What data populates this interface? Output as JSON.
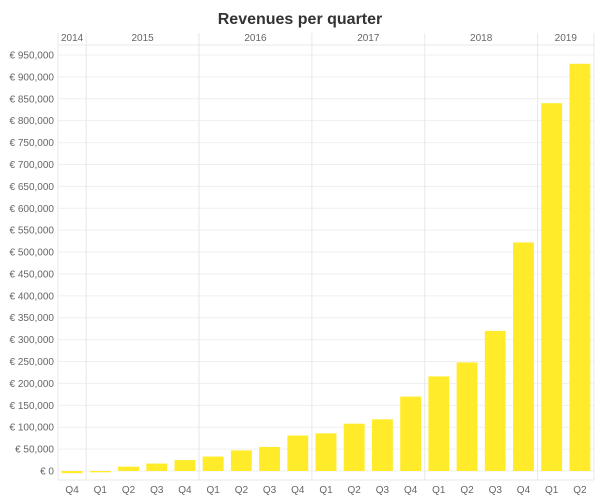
{
  "chart_data": {
    "type": "bar",
    "title": "Revenues per quarter",
    "xlabel": "",
    "ylabel": "",
    "ylim": [
      -10000,
      950000
    ],
    "y_ticks": [
      "€ 0",
      "€ 50,000",
      "€ 100,000",
      "€ 150,000",
      "€ 200,000",
      "€ 250,000",
      "€ 300,000",
      "€ 350,000",
      "€ 400,000",
      "€ 450,000",
      "€ 500,000",
      "€ 550,000",
      "€ 600,000",
      "€ 650,000",
      "€ 700,000",
      "€ 750,000",
      "€ 800,000",
      "€ 850,000",
      "€ 900,000",
      "€ 950,000"
    ],
    "y_tick_values": [
      0,
      50000,
      100000,
      150000,
      200000,
      250000,
      300000,
      350000,
      400000,
      450000,
      500000,
      550000,
      600000,
      650000,
      700000,
      750000,
      800000,
      850000,
      900000,
      950000
    ],
    "years": [
      {
        "label": "2014",
        "quarters": 1
      },
      {
        "label": "2015",
        "quarters": 4
      },
      {
        "label": "2016",
        "quarters": 4
      },
      {
        "label": "2017",
        "quarters": 4
      },
      {
        "label": "2018",
        "quarters": 4
      },
      {
        "label": "2019",
        "quarters": 2
      }
    ],
    "categories": [
      "Q4",
      "Q1",
      "Q2",
      "Q3",
      "Q4",
      "Q1",
      "Q2",
      "Q3",
      "Q4",
      "Q1",
      "Q2",
      "Q3",
      "Q4",
      "Q1",
      "Q2",
      "Q3",
      "Q4",
      "Q1",
      "Q2"
    ],
    "values": [
      -5000,
      -3000,
      10000,
      17000,
      25000,
      33000,
      47000,
      55000,
      81000,
      86000,
      108000,
      118000,
      170000,
      216000,
      248000,
      320000,
      522000,
      840000,
      930000
    ],
    "bar_color": "#ffeb2a",
    "grid": true
  }
}
